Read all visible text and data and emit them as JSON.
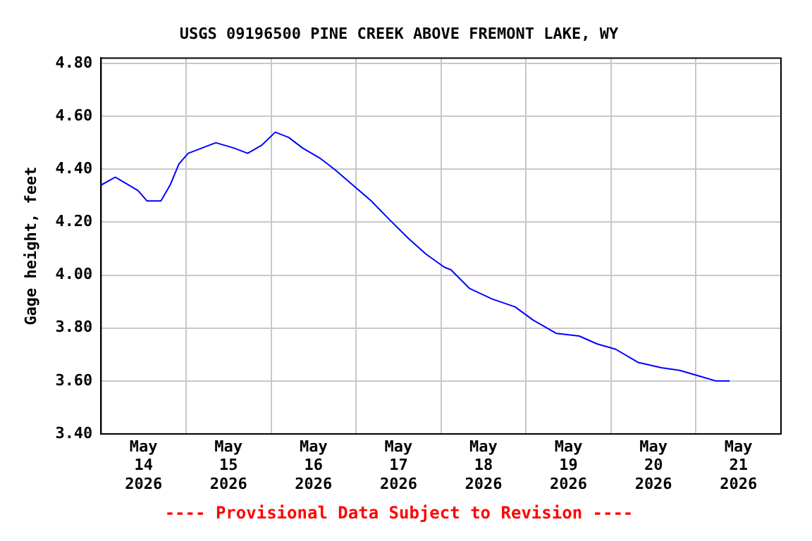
{
  "chart_data": {
    "type": "line",
    "title": "USGS 09196500 PINE CREEK ABOVE FREMONT LAKE, WY",
    "ylabel": "Gage height, feet",
    "annotations": [
      "---- Provisional Data Subject to Revision ----"
    ],
    "x": [
      "2026-05-14T00:00",
      "2026-05-14T04:00",
      "2026-05-14T06:36",
      "2026-05-14T10:24",
      "2026-05-14T13:00",
      "2026-05-14T16:54",
      "2026-05-14T19:30",
      "2026-05-14T22:00",
      "2026-05-15T00:36",
      "2026-05-15T04:30",
      "2026-05-15T08:24",
      "2026-05-15T13:30",
      "2026-05-15T17:24",
      "2026-05-15T21:18",
      "2026-05-16T01:12",
      "2026-05-16T05:00",
      "2026-05-16T08:54",
      "2026-05-16T14:00",
      "2026-05-16T17:54",
      "2026-05-16T23:06",
      "2026-05-17T04:18",
      "2026-05-17T09:24",
      "2026-05-17T14:42",
      "2026-05-17T19:42",
      "2026-05-18T00:54",
      "2026-05-18T02:48",
      "2026-05-18T08:00",
      "2026-05-18T14:24",
      "2026-05-18T20:54",
      "2026-05-19T02:00",
      "2026-05-19T08:30",
      "2026-05-19T15:00",
      "2026-05-19T20:06",
      "2026-05-20T01:18",
      "2026-05-20T07:42",
      "2026-05-20T14:12",
      "2026-05-20T19:24",
      "2026-05-21T00:30",
      "2026-05-21T05:42",
      "2026-05-21T09:30"
    ],
    "series": [
      {
        "color": "#0000ff",
        "values": [
          4.34,
          4.37,
          4.35,
          4.32,
          4.28,
          4.28,
          4.34,
          4.42,
          4.46,
          4.48,
          4.5,
          4.48,
          4.46,
          4.49,
          4.54,
          4.52,
          4.48,
          4.44,
          4.4,
          4.34,
          4.28,
          4.21,
          4.14,
          4.08,
          4.03,
          4.02,
          3.95,
          3.91,
          3.88,
          3.83,
          3.78,
          3.77,
          3.74,
          3.72,
          3.67,
          3.65,
          3.64,
          3.62,
          3.6,
          3.6
        ]
      }
    ],
    "xlim": [
      "2026-05-14T00:00",
      "2026-05-22T00:00"
    ],
    "xticks": [
      {
        "value": "2026-05-14T12:00",
        "label": "May 14 2026"
      },
      {
        "value": "2026-05-15T00:00",
        "label": null
      },
      {
        "value": "2026-05-15T12:00",
        "label": "May 15 2026"
      },
      {
        "value": "2026-05-16T00:00",
        "label": null
      },
      {
        "value": "2026-05-16T12:00",
        "label": "May 16 2026"
      },
      {
        "value": "2026-05-17T00:00",
        "label": null
      },
      {
        "value": "2026-05-17T12:00",
        "label": "May 17 2026"
      },
      {
        "value": "2026-05-18T00:00",
        "label": null
      },
      {
        "value": "2026-05-18T12:00",
        "label": "May 18 2026"
      },
      {
        "value": "2026-05-19T00:00",
        "label": null
      },
      {
        "value": "2026-05-19T12:00",
        "label": "May 19 2026"
      },
      {
        "value": "2026-05-20T00:00",
        "label": null
      },
      {
        "value": "2026-05-20T12:00",
        "label": "May 20 2026"
      },
      {
        "value": "2026-05-21T00:00",
        "label": null
      },
      {
        "value": "2026-05-21T12:00",
        "label": "May 21 2026"
      }
    ],
    "ylim": [
      3.4,
      4.82
    ],
    "yticks": [
      {
        "value": 3.4,
        "label": "3.40"
      },
      {
        "value": 3.6,
        "label": "3.60"
      },
      {
        "value": 3.8,
        "label": "3.80"
      },
      {
        "value": 4.0,
        "label": "4.00"
      },
      {
        "value": 4.2,
        "label": "4.20"
      },
      {
        "value": 4.4,
        "label": "4.40"
      },
      {
        "value": 4.6,
        "label": "4.60"
      },
      {
        "value": 4.8,
        "label": "4.80"
      }
    ],
    "grid": true,
    "legend": false,
    "marker": "none",
    "line_style": "solid"
  }
}
